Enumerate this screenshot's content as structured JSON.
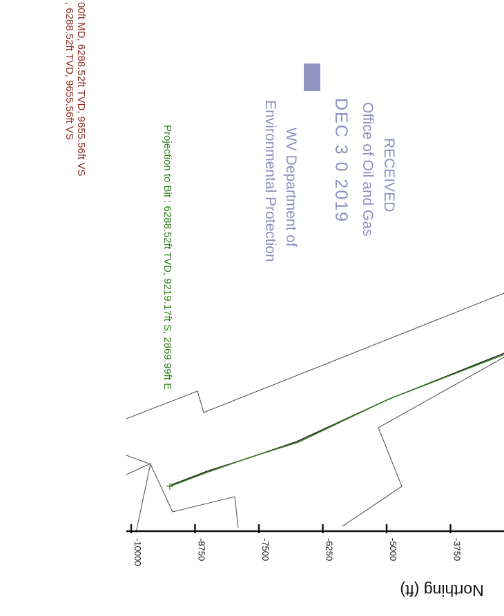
{
  "survey_labels": {
    "line1": "00ft MD, 6288.52ft TVD, 9655.56ft VS",
    "line2": ", 6288.52ft TVD, 9655.56ft VS"
  },
  "projection_label": "Projection to Bit : 6288.52ft TVD, 9219.17ft S, 2869.99ft E",
  "stamp": {
    "line1": "RECEIVED",
    "line2": "Office of Oil and Gas",
    "line3": "DEC 3 0 2019",
    "line4": "WV Department of",
    "line5": "Environmental Protection",
    "color": "#8a8fc2"
  },
  "colors": {
    "survey_text": "#8b2a1f",
    "projection": "#2f7a1a",
    "axis": "#111111",
    "lease_lines": "#555555"
  },
  "chart_data": {
    "type": "line",
    "ylabel": "Northing (ft)",
    "ylim": [
      -10000,
      -3000
    ],
    "y_ticks": [
      -10000,
      -8750,
      -7500,
      -6250,
      -5000,
      -3750
    ],
    "y_tick_labels": [
      "-10000",
      "-8750",
      "-7500",
      "-6250",
      "-5000",
      "-3750"
    ],
    "series": [
      {
        "values": []
      }
    ],
    "grid": false,
    "legend": "none"
  }
}
